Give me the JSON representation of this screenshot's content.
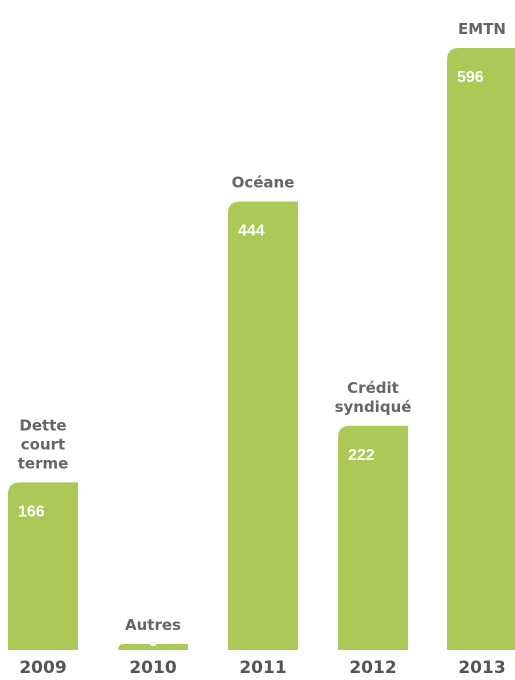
{
  "chart_data": {
    "type": "bar",
    "categories": [
      "2009",
      "2010",
      "2011",
      "2012",
      "2013"
    ],
    "values": [
      166,
      6,
      444,
      222,
      596
    ],
    "annotations": [
      [
        "Dette",
        "court",
        "terme"
      ],
      [
        "Autres"
      ],
      [
        "Océane"
      ],
      [
        "Crédit",
        "syndiqué"
      ],
      [
        "EMTN"
      ]
    ],
    "color": "#abc956"
  }
}
